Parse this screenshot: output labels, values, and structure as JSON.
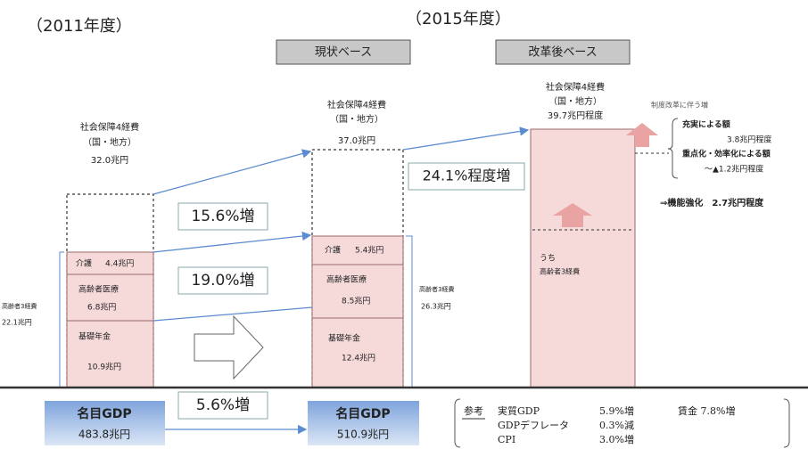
{
  "year_2011": "（2011年度）",
  "year_2015": "（2015年度）",
  "base_current": "現状ベース",
  "base_reform": "改革後ベース",
  "fy2011": {
    "title": "社会保障4経費",
    "sub": "（国・地方）",
    "total": "32.0兆円",
    "elderly_label": "高齢者3経費",
    "elderly_total": "22.1兆円",
    "items": [
      {
        "name": "介護",
        "amount": "4.4兆円"
      },
      {
        "name": "高齢者医療",
        "amount": "6.8兆円"
      },
      {
        "name": "基礎年金",
        "amount": "10.9兆円"
      }
    ]
  },
  "fy2015_current": {
    "title": "社会保障4経費",
    "sub": "（国・地方）",
    "total": "37.0兆円",
    "elderly_label": "高齢者3経費",
    "elderly_total": "26.3兆円",
    "items": [
      {
        "name": "介護",
        "amount": "5.4兆円"
      },
      {
        "name": "高齢者医療",
        "amount": "8.5兆円"
      },
      {
        "name": "基礎年金",
        "amount": "12.4兆円"
      }
    ]
  },
  "fy2015_reform": {
    "title": "社会保障4経費",
    "sub": "（国・地方）",
    "total": "39.7兆円程度",
    "inner_note": [
      "うち",
      "高齢者3経費"
    ]
  },
  "growth": {
    "total_current": "15.6%増",
    "elderly": "19.0%増",
    "total_reform": "24.1%程度増",
    "gdp": "5.6%増"
  },
  "gdp": [
    {
      "label": "名目GDP",
      "value": "483.8兆円"
    },
    {
      "label": "名目GDP",
      "value": "510.9兆円"
    }
  ],
  "reform_notes": {
    "heading": "制度改革に伴う増",
    "enhance_label": "充実による額",
    "enhance_amount": "3.8兆円程度",
    "efficiency_label": "重点化・効率化による額",
    "efficiency_amount": "～▲1.2兆円程度",
    "net": "⇒機能強化　2.7兆円程度"
  },
  "reference": {
    "title": "参考",
    "rows": [
      [
        "実質GDP",
        "5.9%増"
      ],
      [
        "GDPデフレータ",
        "0.3%減"
      ],
      [
        "CPI",
        "3.0%増"
      ]
    ],
    "wage": "賃金 7.8%増"
  }
}
